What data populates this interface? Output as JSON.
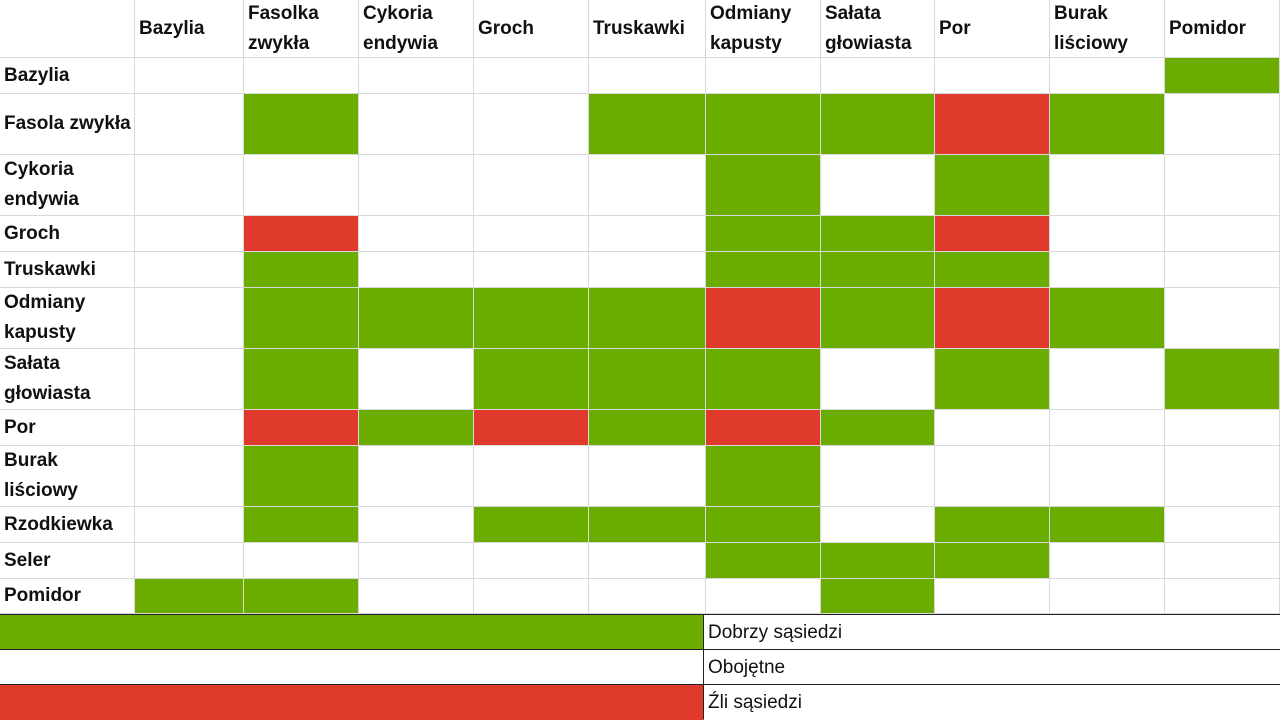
{
  "columns": [
    "Bazylia",
    "Fasolka zwykła",
    "Cykoria endywia",
    "Groch",
    "Truskawki",
    "Odmiany kapusty",
    "Sałata głowiasta",
    "Por",
    "Burak liściowy",
    "Pomidor"
  ],
  "rows": [
    {
      "label": "Bazylia",
      "cells": [
        "",
        "",
        "",
        "",
        "",
        "",
        "",
        "",
        "",
        "g"
      ]
    },
    {
      "label": "Fasola zwykła",
      "cells": [
        "",
        "g",
        "",
        "",
        "g",
        "g",
        "g",
        "r",
        "g",
        ""
      ]
    },
    {
      "label": "Cykoria endywia",
      "cells": [
        "",
        "",
        "",
        "",
        "",
        "g",
        "",
        "g",
        "",
        ""
      ]
    },
    {
      "label": "Groch",
      "cells": [
        "",
        "r",
        "",
        "",
        "",
        "g",
        "g",
        "r",
        "",
        ""
      ]
    },
    {
      "label": "Truskawki",
      "cells": [
        "",
        "g",
        "",
        "",
        "",
        "g",
        "g",
        "g",
        "",
        ""
      ]
    },
    {
      "label": "Odmiany kapusty",
      "cells": [
        "",
        "g",
        "g",
        "g",
        "g",
        "r",
        "g",
        "r",
        "g",
        ""
      ]
    },
    {
      "label": "Sałata głowiasta",
      "cells": [
        "",
        "g",
        "",
        "g",
        "g",
        "g",
        "",
        "g",
        "",
        "g"
      ]
    },
    {
      "label": "Por",
      "cells": [
        "",
        "r",
        "g",
        "r",
        "g",
        "r",
        "g",
        "",
        "",
        ""
      ]
    },
    {
      "label": "Burak liściowy",
      "cells": [
        "",
        "g",
        "",
        "",
        "",
        "g",
        "",
        "",
        "",
        ""
      ]
    },
    {
      "label": "Rzodkiewka",
      "cells": [
        "",
        "g",
        "",
        "g",
        "g",
        "g",
        "",
        "g",
        "g",
        ""
      ]
    },
    {
      "label": "Seler",
      "cells": [
        "",
        "",
        "",
        "",
        "",
        "g",
        "g",
        "g",
        "",
        ""
      ]
    },
    {
      "label": "Pomidor",
      "cells": [
        "g",
        "g",
        "",
        "",
        "",
        "",
        "g",
        "",
        "",
        ""
      ]
    }
  ],
  "legend": [
    {
      "key": "g",
      "label": "Dobrzy sąsiedzi"
    },
    {
      "key": "n",
      "label": "Obojętne"
    },
    {
      "key": "r",
      "label": "Źli sąsiedzi"
    }
  ],
  "colors": {
    "good": "#6aad00",
    "bad": "#e03a2c",
    "neutral": "#ffffff"
  }
}
